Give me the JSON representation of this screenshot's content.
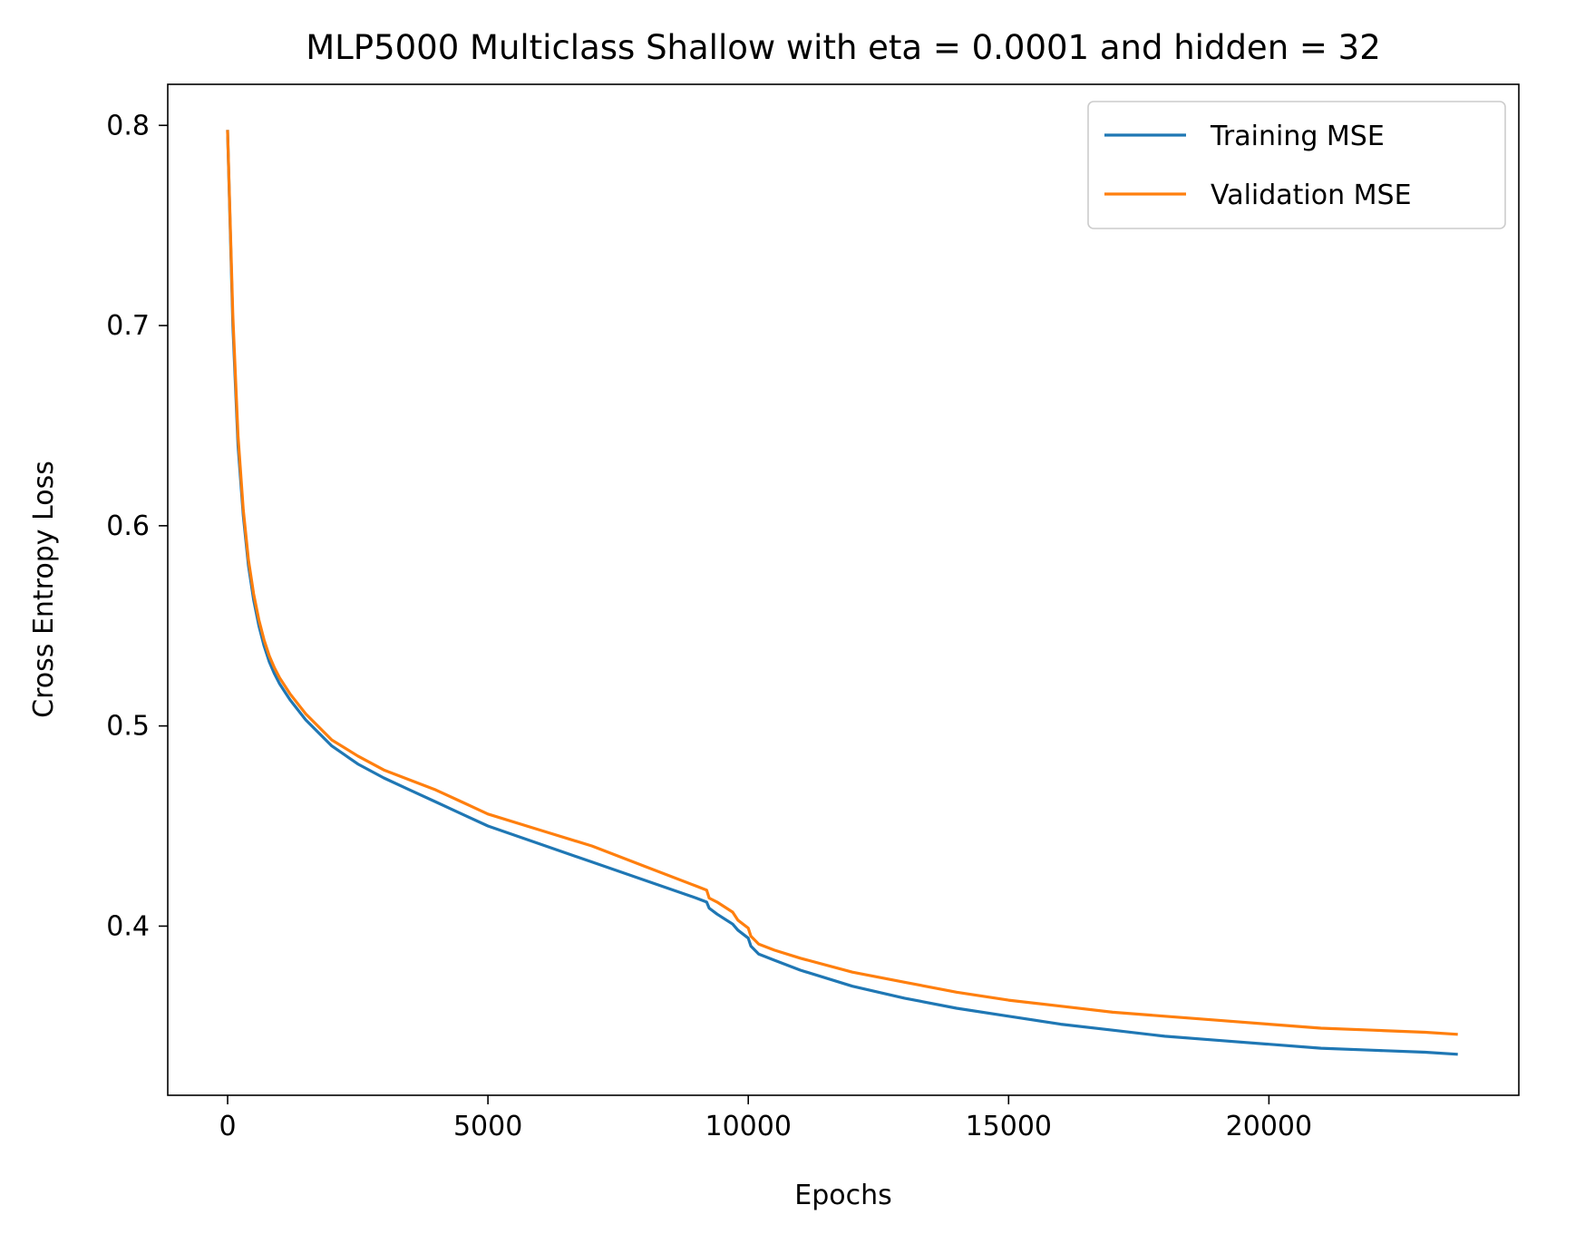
{
  "chart_data": {
    "type": "line",
    "title": "MLP5000 Multiclass Shallow with eta = 0.0001 and hidden = 32",
    "xlabel": "Epochs",
    "ylabel": "Cross Entropy Loss",
    "xlim": [
      -1150,
      24800
    ],
    "ylim": [
      0.3155,
      0.8205
    ],
    "xticks": [
      0,
      5000,
      10000,
      15000,
      20000
    ],
    "xtick_labels": [
      "0",
      "5000",
      "10000",
      "15000",
      "20000"
    ],
    "yticks": [
      0.4,
      0.5,
      0.6,
      0.7,
      0.8
    ],
    "ytick_labels": [
      "0.4",
      "0.5",
      "0.6",
      "0.7",
      "0.8"
    ],
    "grid": false,
    "legend_position": "top-right",
    "series": [
      {
        "name": "Training MSE",
        "color": "#1f77b4",
        "x": [
          0,
          100,
          200,
          300,
          400,
          500,
          600,
          700,
          800,
          900,
          1000,
          1200,
          1500,
          2000,
          2500,
          3000,
          3500,
          4000,
          4500,
          5000,
          6000,
          7000,
          8000,
          9000,
          9200,
          9250,
          9400,
          9700,
          9800,
          10000,
          10050,
          10200,
          10500,
          11000,
          12000,
          13000,
          14000,
          15000,
          16000,
          17000,
          18000,
          19000,
          20000,
          21000,
          22000,
          23000,
          23600
        ],
        "y": [
          0.797,
          0.7,
          0.64,
          0.605,
          0.58,
          0.563,
          0.55,
          0.54,
          0.532,
          0.526,
          0.521,
          0.513,
          0.503,
          0.49,
          0.481,
          0.474,
          0.468,
          0.462,
          0.456,
          0.45,
          0.441,
          0.432,
          0.423,
          0.414,
          0.412,
          0.409,
          0.406,
          0.401,
          0.398,
          0.394,
          0.39,
          0.386,
          0.383,
          0.378,
          0.37,
          0.364,
          0.359,
          0.355,
          0.351,
          0.348,
          0.345,
          0.343,
          0.341,
          0.339,
          0.338,
          0.337,
          0.336
        ]
      },
      {
        "name": "Validation MSE",
        "color": "#ff7f0e",
        "x": [
          0,
          100,
          200,
          300,
          400,
          500,
          600,
          700,
          800,
          900,
          1000,
          1200,
          1500,
          2000,
          2500,
          3000,
          3500,
          4000,
          4500,
          5000,
          6000,
          7000,
          8000,
          9000,
          9200,
          9250,
          9400,
          9700,
          9800,
          10000,
          10050,
          10200,
          10500,
          11000,
          12000,
          13000,
          14000,
          15000,
          16000,
          17000,
          18000,
          19000,
          20000,
          21000,
          22000,
          23000,
          23600
        ],
        "y": [
          0.797,
          0.705,
          0.645,
          0.608,
          0.583,
          0.566,
          0.553,
          0.543,
          0.535,
          0.529,
          0.524,
          0.516,
          0.506,
          0.493,
          0.485,
          0.478,
          0.473,
          0.468,
          0.462,
          0.456,
          0.448,
          0.44,
          0.43,
          0.42,
          0.418,
          0.414,
          0.412,
          0.407,
          0.403,
          0.399,
          0.395,
          0.391,
          0.388,
          0.384,
          0.377,
          0.372,
          0.367,
          0.363,
          0.36,
          0.357,
          0.355,
          0.353,
          0.351,
          0.349,
          0.348,
          0.347,
          0.346
        ]
      }
    ]
  }
}
